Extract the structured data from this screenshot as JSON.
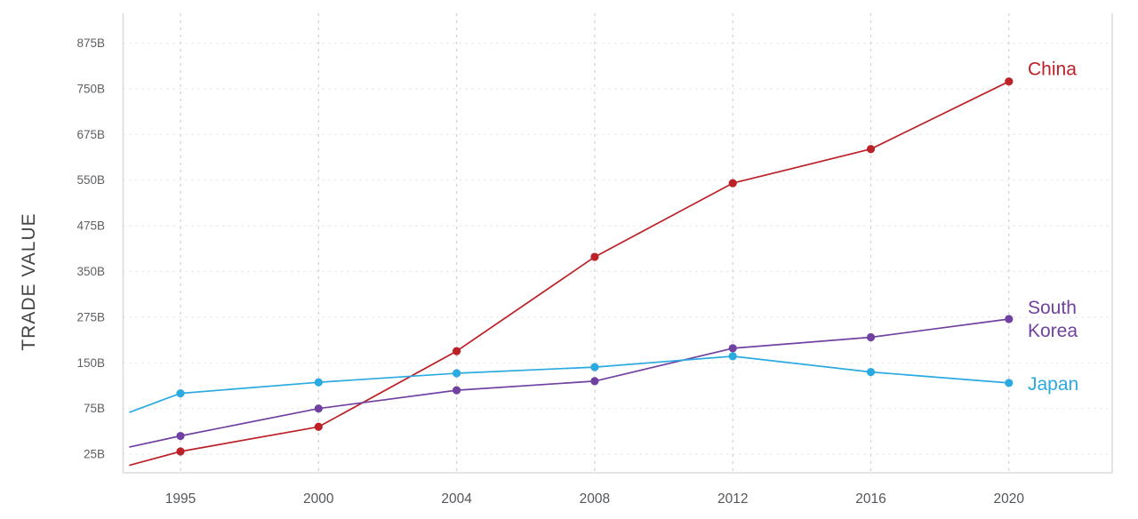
{
  "chart_data": {
    "type": "line",
    "title": "",
    "ylabel": "TRADE VALUE",
    "unit": "billions (B)",
    "x": [
      1995,
      2000,
      2004,
      2008,
      2012,
      2016,
      2020
    ],
    "x_tick_labels": [
      "1995",
      "2000",
      "2004",
      "2008",
      "2012",
      "2016",
      "2020"
    ],
    "y_tick_labels": [
      "875B",
      "750B",
      "675B",
      "550B",
      "475B",
      "350B",
      "275B",
      "150B",
      "75B",
      "25B"
    ],
    "y_tick_values": [
      875,
      750,
      675,
      550,
      475,
      350,
      275,
      150,
      75,
      25
    ],
    "grid": "dashed horizontal and vertical",
    "legend_position": "inline labels at right end of each line",
    "series": [
      {
        "name": "China",
        "label_lines": [
          "China"
        ],
        "color": "#bb2127",
        "edge_value": 13,
        "values": [
          28,
          55,
          182,
          390,
          545,
          635,
          770
        ]
      },
      {
        "name": "South Korea",
        "label_lines": [
          "South",
          "Korea"
        ],
        "color": "#7141a1",
        "edge_value": 33,
        "values": [
          45,
          75,
          105,
          120,
          190,
          220,
          270
        ]
      },
      {
        "name": "Japan",
        "label_lines": [
          "Japan"
        ],
        "color": "#2ba9e1",
        "edge_value": 71,
        "values": [
          100,
          118,
          133,
          143,
          168,
          135,
          117
        ]
      }
    ],
    "colors": {
      "axis_border": "#d8dbde",
      "vertical_grid": "#d4d4d4",
      "horizontal_grid": "#e3e3e3",
      "tick_text": "#5d6064",
      "axis_title_text": "#424448"
    }
  }
}
